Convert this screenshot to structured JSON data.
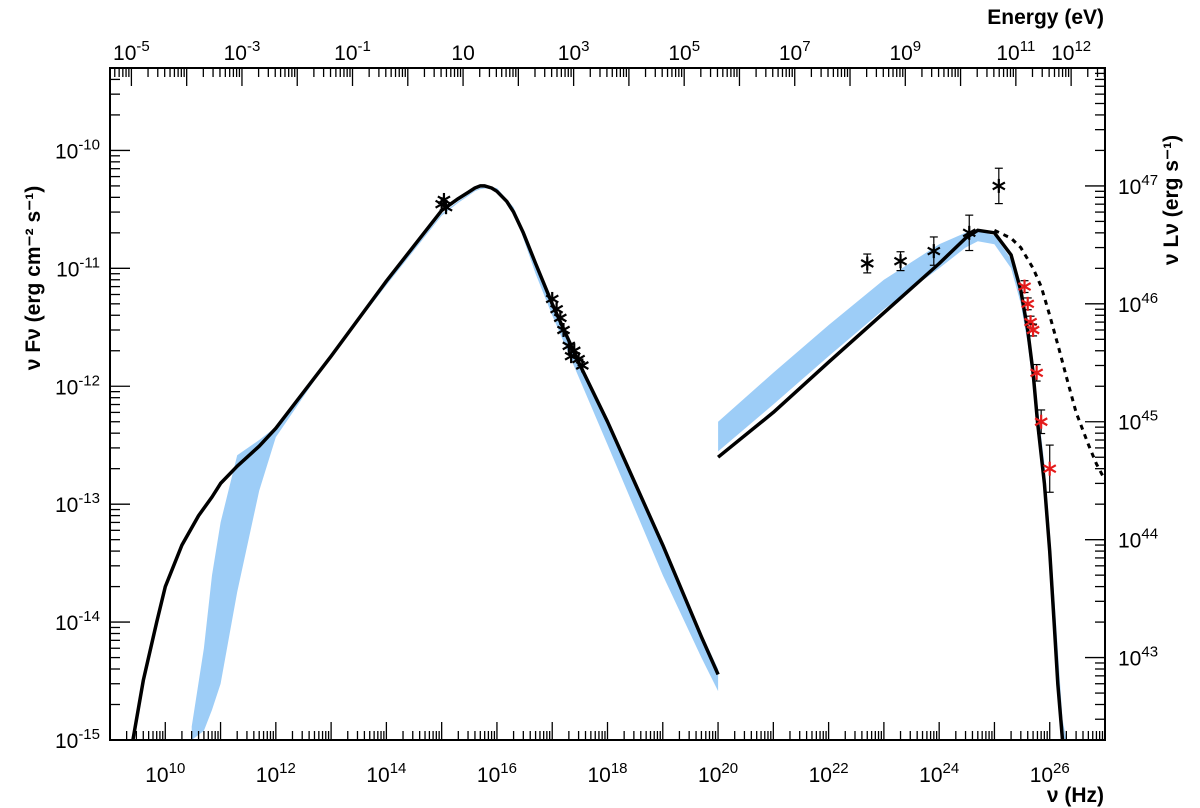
{
  "chart_data": {
    "type": "scatter",
    "scale": {
      "x": "log",
      "y": "log",
      "y_right": "log",
      "x_top": "log"
    },
    "xlabel": "ν (Hz)",
    "ylabel": "ν Fν (erg cm⁻² s⁻¹)",
    "x2label": "Energy (eV)",
    "y2label": "ν Lν (erg s⁻¹)",
    "xlim": [
      1000000000.0,
      1e+27
    ],
    "ylim": [
      1e-15,
      5e-10
    ],
    "x2lim_eV": [
      4.1e-06,
      4100000000000.0
    ],
    "y2lim": [
      2e+42,
      1e+48
    ],
    "x_ticks": [
      {
        "v": 10000000000.0,
        "base": "10",
        "exp": "10"
      },
      {
        "v": 1000000000000.0,
        "base": "10",
        "exp": "12"
      },
      {
        "v": 100000000000000.0,
        "base": "10",
        "exp": "14"
      },
      {
        "v": 1e+16,
        "base": "10",
        "exp": "16"
      },
      {
        "v": 1e+18,
        "base": "10",
        "exp": "18"
      },
      {
        "v": 1e+20,
        "base": "10",
        "exp": "20"
      },
      {
        "v": 1e+22,
        "base": "10",
        "exp": "22"
      },
      {
        "v": 1e+24,
        "base": "10",
        "exp": "24"
      },
      {
        "v": 1e+26,
        "base": "10",
        "exp": "26"
      }
    ],
    "y_ticks": [
      {
        "v": 1e-15,
        "base": "10",
        "exp": "-15"
      },
      {
        "v": 1e-14,
        "base": "10",
        "exp": "-14"
      },
      {
        "v": 1e-13,
        "base": "10",
        "exp": "-13"
      },
      {
        "v": 1e-12,
        "base": "10",
        "exp": "-12"
      },
      {
        "v": 1e-11,
        "base": "10",
        "exp": "-11"
      },
      {
        "v": 1e-10,
        "base": "10",
        "exp": "-10"
      }
    ],
    "x2_ticks": [
      {
        "v": 1e-05,
        "base": "10",
        "exp": "-5"
      },
      {
        "v": 0.001,
        "base": "10",
        "exp": "-3"
      },
      {
        "v": 0.1,
        "base": "10",
        "exp": "-1"
      },
      {
        "v": 10,
        "base": "10",
        "exp": ""
      },
      {
        "v": 1000.0,
        "base": "10",
        "exp": "3"
      },
      {
        "v": 100000.0,
        "base": "10",
        "exp": "5"
      },
      {
        "v": 10000000.0,
        "base": "10",
        "exp": "7"
      },
      {
        "v": 1000000000.0,
        "base": "10",
        "exp": "9"
      },
      {
        "v": 100000000000.0,
        "base": "10",
        "exp": "11"
      },
      {
        "v": 1000000000000.0,
        "base": "10",
        "exp": "12"
      }
    ],
    "y2_ticks": [
      {
        "v": 1e+43,
        "base": "10",
        "exp": "43"
      },
      {
        "v": 1e+44,
        "base": "10",
        "exp": "44"
      },
      {
        "v": 1e+45,
        "base": "10",
        "exp": "45"
      },
      {
        "v": 1e+46,
        "base": "10",
        "exp": "46"
      },
      {
        "v": 1e+47,
        "base": "10",
        "exp": "47"
      }
    ],
    "colors": {
      "band": "#9dcdf7",
      "model": "#000000",
      "observed": "#000000",
      "tev": "#e41b1b"
    },
    "band_sync": {
      "x": [
        30000000000.0,
        50000000000.0,
        70000000000.0,
        100000000000.0,
        200000000000.0,
        500000000000.0,
        1000000000000.0,
        10000000000000.0,
        100000000000000.0,
        1000000000000000.0,
        2000000000000000.0,
        3000000000000000.0,
        4000000000000000.0,
        5000000000000000.0,
        7000000000000000.0,
        1e+16,
        2e+16,
        5e+16,
        1e+17,
        3e+17,
        1e+18,
        1e+19,
        5e+19,
        1e+20
      ],
      "upper": [
        1.3e-15,
        6e-15,
        2.5e-14,
        7e-14,
        2.6e-13,
        3.5e-13,
        4.5e-13,
        1.8e-12,
        7.5e-12,
        2.9e-11,
        3.7e-11,
        4.2e-11,
        4.6e-11,
        4.8e-11,
        4.9e-11,
        4.8e-11,
        3.3e-11,
        1.1e-11,
        5e-12,
        1.7e-12,
        5e-13,
        4.5e-14,
        8e-15,
        4e-15
      ],
      "lower": [
        1e-15,
        1.2e-15,
        1.8e-15,
        3e-15,
        1.8e-14,
        1.3e-13,
        3.7e-13,
        1.8e-12,
        7.2e-12,
        2.8e-11,
        3.6e-11,
        4.1e-11,
        4.5e-11,
        4.7e-11,
        4.8e-11,
        4.6e-11,
        3.1e-11,
        9e-12,
        4e-12,
        1.2e-12,
        3.2e-13,
        2.5e-14,
        5e-15,
        2.6e-15
      ]
    },
    "band_ic": {
      "x": [
        1e+20,
        1e+21,
        1e+22,
        1e+23,
        1e+24,
        3e+24,
        5e+24,
        1e+25,
        2e+25,
        3e+25,
        4e+25,
        5e+25,
        6e+25,
        8e+25,
        1e+26,
        1.3e+26,
        1.7e+26,
        2e+26
      ],
      "upper": [
        5e-13,
        1.3e-12,
        3.3e-12,
        8e-12,
        1.6e-11,
        2e-11,
        2.1e-11,
        1.9e-11,
        1.2e-11,
        6e-12,
        3e-12,
        1.5e-12,
        7e-13,
        2.2e-13,
        6e-14,
        1e-14,
        1.5e-15,
        1e-15
      ],
      "lower": [
        2.8e-13,
        7e-13,
        1.8e-12,
        4.5e-12,
        1e-11,
        1.5e-11,
        1.7e-11,
        1.6e-11,
        1e-11,
        5e-12,
        2.3e-12,
        1e-12,
        4.5e-13,
        1.3e-13,
        3.5e-14,
        6e-15,
        1e-15,
        1e-15
      ]
    },
    "model_sync": {
      "x": [
        2600000000.0,
        4000000000.0,
        7000000000.0,
        10000000000.0,
        20000000000.0,
        40000000000.0,
        70000000000.0,
        100000000000.0,
        200000000000.0,
        500000000000.0,
        1000000000000.0,
        10000000000000.0,
        100000000000000.0,
        1000000000000000.0,
        2000000000000000.0,
        3000000000000000.0,
        4000000000000000.0,
        5000000000000000.0,
        6000000000000000.0,
        8000000000000000.0,
        1e+16,
        1.5e+16,
        2e+16,
        3e+16,
        5e+16,
        1e+17,
        3e+17,
        1e+18,
        1e+19,
        5e+19,
        1e+20
      ],
      "y": [
        1e-15,
        3.2e-15,
        1e-14,
        2e-14,
        4.5e-14,
        8e-14,
        1.15e-13,
        1.5e-13,
        2.1e-13,
        3.1e-13,
        4.4e-13,
        1.8e-12,
        7.8e-12,
        3.1e-11,
        3.9e-11,
        4.4e-11,
        4.8e-11,
        5e-11,
        5e-11,
        4.8e-11,
        4.5e-11,
        3.7e-11,
        3e-11,
        2e-11,
        1.1e-11,
        5e-12,
        1.6e-12,
        5e-13,
        4.5e-14,
        7.5e-15,
        3.6e-15
      ]
    },
    "model_ic": {
      "x": [
        1e+20,
        1e+21,
        1e+22,
        1e+23,
        1e+24,
        3e+24,
        5e+24,
        1e+25,
        2e+25,
        3e+25,
        4e+25,
        5e+25,
        6e+25,
        8e+25,
        1e+26,
        1.2e+26,
        1.4e+26,
        1.7e+26
      ],
      "y": [
        2.5e-13,
        6e-13,
        1.6e-12,
        4.2e-12,
        1.1e-11,
        1.8e-11,
        2.1e-11,
        2e-11,
        1.3e-11,
        6.5e-12,
        3e-12,
        1.3e-12,
        5e-13,
        1.5e-13,
        4e-14,
        1e-14,
        3e-15,
        1e-15
      ]
    },
    "model_ic_intrinsic": {
      "x": [
        1e+25,
        2e+25,
        3e+25,
        5e+25,
        7e+25,
        1e+26,
        1.5e+26,
        2e+26,
        3e+26,
        5e+26,
        7e+26,
        1e+27
      ],
      "y": [
        2.1e-11,
        1.8e-11,
        1.5e-11,
        1e-11,
        7e-12,
        4e-12,
        2e-12,
        1.2e-12,
        6e-13,
        3.2e-13,
        2.2e-13,
        1.6e-13
      ]
    },
    "observed": [
      {
        "x": 1000000000000000.0,
        "y": 3.5e-11,
        "err": 0
      },
      {
        "x": 1100000000000000.0,
        "y": 3.8e-11,
        "err": 0
      },
      {
        "x": 1200000000000000.0,
        "y": 3.3e-11,
        "err": 0
      },
      {
        "x": 1e+17,
        "y": 5.5e-12,
        "err": 0
      },
      {
        "x": 1.2e+17,
        "y": 4.5e-12,
        "err": 0
      },
      {
        "x": 1.4e+17,
        "y": 3.8e-12,
        "err": 0
      },
      {
        "x": 1.6e+17,
        "y": 3e-12,
        "err": 0
      },
      {
        "x": 2e+17,
        "y": 2.2e-12,
        "err": 0
      },
      {
        "x": 2.2e+17,
        "y": 1.8e-12,
        "err": 0
      },
      {
        "x": 2.5e+17,
        "y": 2e-12,
        "err": 0
      },
      {
        "x": 3e+17,
        "y": 1.7e-12,
        "err": 0
      },
      {
        "x": 3.5e+17,
        "y": 1.5e-12,
        "err": 0
      },
      {
        "x": 5e+22,
        "y": 1.1e-11,
        "err": 0.08
      },
      {
        "x": 2e+23,
        "y": 1.15e-11,
        "err": 0.08
      },
      {
        "x": 8e+23,
        "y": 1.4e-11,
        "err": 0.12
      },
      {
        "x": 3.5e+24,
        "y": 2e-11,
        "err": 0.15
      },
      {
        "x": 1.2e+25,
        "y": 5e-11,
        "err": 0.15
      }
    ],
    "tev": [
      {
        "x": 3.5e+25,
        "y": 7e-12,
        "err": 0.05
      },
      {
        "x": 4e+25,
        "y": 5e-12,
        "err": 0.05
      },
      {
        "x": 4.5e+25,
        "y": 3.5e-12,
        "err": 0.05
      },
      {
        "x": 5e+25,
        "y": 3e-12,
        "err": 0.05
      },
      {
        "x": 5.8e+25,
        "y": 1.3e-12,
        "err": 0.07
      },
      {
        "x": 7e+25,
        "y": 5e-13,
        "err": 0.1
      },
      {
        "x": 1e+26,
        "y": 2e-13,
        "err": 0.2
      }
    ]
  }
}
